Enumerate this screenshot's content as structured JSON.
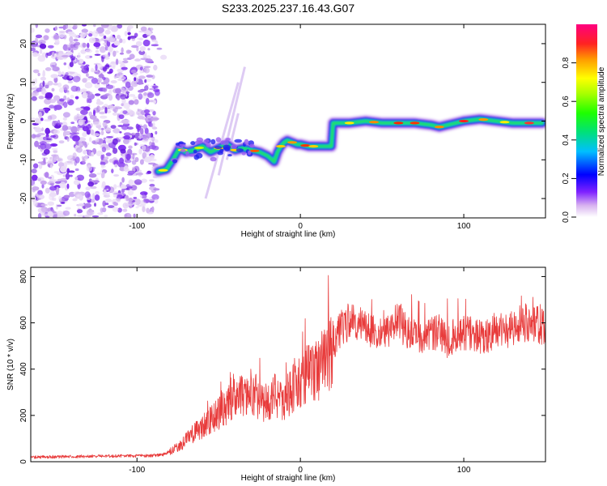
{
  "title": "S233.2025.237.16.43.G07",
  "chart_data": [
    {
      "type": "heatmap",
      "title": "S233.2025.237.16.43.G07",
      "xlabel": "Height of straight line (km)",
      "ylabel": "Frequency (Hz)",
      "xlim": [
        -165,
        150
      ],
      "ylim": [
        -25,
        25
      ],
      "xticks": [
        -100,
        0,
        100
      ],
      "yticks": [
        -20,
        -10,
        0,
        10,
        20
      ],
      "colorbar": {
        "label": "Normalized spectral amplitude",
        "range": [
          0,
          1
        ],
        "ticks": [
          0.0,
          0.2,
          0.4,
          0.6,
          0.8
        ],
        "tick_labels": [
          "0.0",
          "0.2",
          "0.4",
          "0.6",
          "0.8"
        ]
      },
      "ridge": {
        "x": [
          -87,
          -82,
          -78,
          -74,
          -70,
          -65,
          -60,
          -55,
          -50,
          -45,
          -40,
          -35,
          -30,
          -25,
          -20,
          -16,
          -14,
          -12,
          -10,
          -8,
          -5,
          -2,
          0,
          5,
          10,
          15,
          19,
          20,
          25,
          30,
          40,
          50,
          60,
          70,
          80,
          85,
          90,
          95,
          100,
          110,
          120,
          130,
          140,
          148
        ],
        "y": [
          -13,
          -12.5,
          -10,
          -7,
          -8,
          -7.5,
          -6.5,
          -8,
          -7,
          -6,
          -7.5,
          -7,
          -7.5,
          -8,
          -9,
          -10.5,
          -8,
          -6.5,
          -5.5,
          -5,
          -5.5,
          -6,
          -6,
          -6.5,
          -6.5,
          -6.5,
          -6.5,
          -0.5,
          -0.5,
          -0.5,
          0,
          -0.5,
          -0.5,
          -0.5,
          -1,
          -1.5,
          -1,
          -0.5,
          0,
          0.5,
          0,
          -0.5,
          -0.5,
          -0.5
        ]
      },
      "noise_region": {
        "x_range": [
          -165,
          -88
        ],
        "y_range": [
          -25,
          25
        ]
      }
    },
    {
      "type": "line",
      "xlabel": "Height of straight line (km)",
      "ylabel": "SNR (10 * v/v)",
      "xlim": [
        -165,
        150
      ],
      "ylim": [
        0,
        840
      ],
      "xticks": [
        -100,
        0,
        100
      ],
      "yticks": [
        0,
        200,
        400,
        600,
        800
      ],
      "series": [
        {
          "name": "SNR",
          "color": "#e83b3b",
          "x": [
            -165,
            -140,
            -120,
            -100,
            -85,
            -78,
            -72,
            -66,
            -60,
            -55,
            -50,
            -45,
            -40,
            -35,
            -30,
            -25,
            -20,
            -15,
            -10,
            -5,
            0,
            5,
            10,
            15,
            20,
            25,
            30,
            35,
            40,
            45,
            50,
            55,
            60,
            65,
            70,
            75,
            80,
            85,
            90,
            95,
            100,
            105,
            110,
            115,
            120,
            125,
            130,
            135,
            140,
            145,
            150
          ],
          "values": [
            20,
            22,
            25,
            25,
            28,
            50,
            80,
            120,
            150,
            180,
            210,
            240,
            300,
            280,
            300,
            270,
            250,
            300,
            250,
            320,
            350,
            380,
            400,
            430,
            500,
            580,
            610,
            600,
            590,
            560,
            580,
            560,
            620,
            560,
            540,
            520,
            560,
            560,
            520,
            550,
            560,
            560,
            540,
            540,
            580,
            560,
            580,
            600,
            600,
            590,
            580
          ]
        }
      ]
    }
  ]
}
